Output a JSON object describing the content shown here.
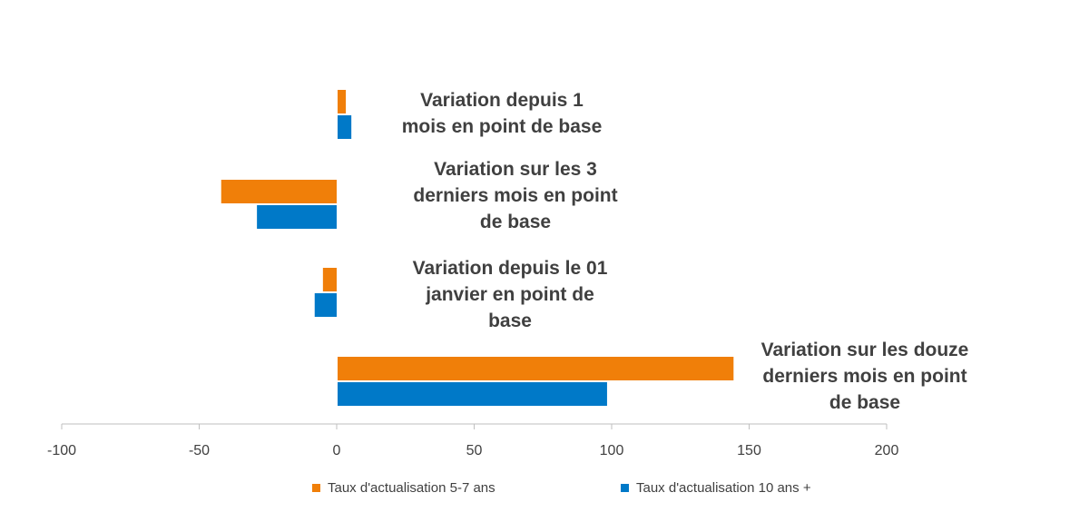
{
  "chart_data": {
    "type": "bar",
    "orientation": "horizontal",
    "categories": [
      [
        "Variation depuis 1",
        "mois en point de base"
      ],
      [
        "Variation sur les 3",
        "derniers mois en point",
        "de base"
      ],
      [
        "Variation depuis le 01",
        "janvier en point de",
        "base"
      ],
      [
        "Variation sur les douze",
        "derniers mois en point",
        "de base"
      ]
    ],
    "series": [
      {
        "name": "Taux d'actualisation 5-7 ans",
        "color": "#F07F09",
        "values": [
          3,
          -42,
          -5,
          144
        ]
      },
      {
        "name": "Taux d'actualisation 10 ans +",
        "color": "#0079C8",
        "values": [
          5,
          -29,
          -8,
          98
        ]
      }
    ],
    "xlim": [
      -100,
      200
    ],
    "xticks": [
      "-100",
      "-50",
      "0",
      "50",
      "100",
      "150",
      "200"
    ],
    "grid": false,
    "legend_position": "bottom"
  }
}
